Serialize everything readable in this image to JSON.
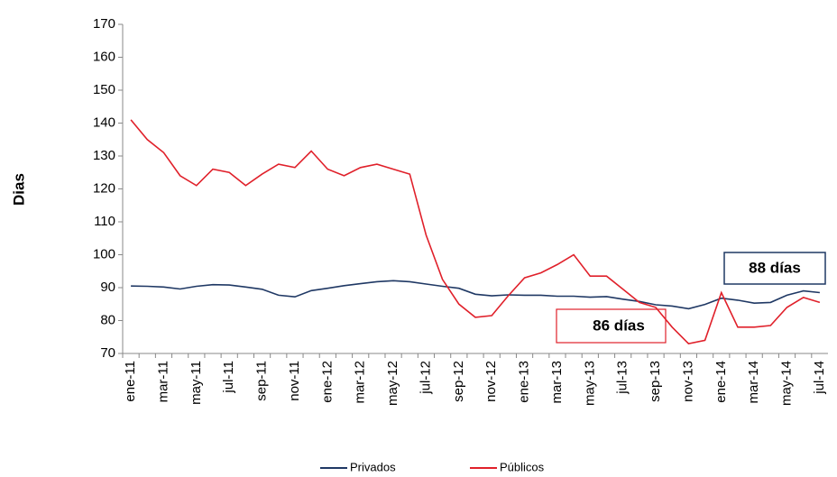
{
  "chart_data": {
    "type": "line",
    "y_label": "Dias",
    "categories": [
      "ene-11",
      null,
      "mar-11",
      null,
      "may-11",
      null,
      "jul-11",
      null,
      "sep-11",
      null,
      "nov-11",
      null,
      "ene-12",
      null,
      "mar-12",
      null,
      "may-12",
      null,
      "jul-12",
      null,
      "sep-12",
      null,
      "nov-12",
      null,
      "ene-13",
      null,
      "mar-13",
      null,
      "may-13",
      null,
      "jul-13",
      null,
      "sep-13",
      null,
      "nov-13",
      null,
      "ene-14",
      null,
      "mar-14",
      null,
      "may-14",
      null,
      "jul-14"
    ],
    "series": [
      {
        "name": "Privados",
        "color": "#1f3864",
        "values": [
          90.5,
          90.4,
          90.2,
          89.6,
          90.4,
          90.9,
          90.8,
          90.2,
          89.5,
          87.7,
          87.2,
          89.1,
          89.8,
          90.6,
          91.2,
          91.8,
          92.1,
          91.8,
          91.1,
          90.4,
          89.8,
          88,
          87.5,
          87.8,
          87.7,
          87.7,
          87.4,
          87.4,
          87.1,
          87.3,
          86.5,
          85.8,
          84.8,
          84.4,
          83.6,
          84.9,
          86.8,
          86.2,
          85.3,
          85.5,
          87.7,
          89,
          88.5
        ]
      },
      {
        "name": "Públicos",
        "color": "#e0202a",
        "values": [
          141,
          135,
          131,
          124,
          121,
          126,
          125,
          121,
          124.5,
          127.5,
          126.5,
          131.5,
          126,
          124,
          126.5,
          127.5,
          126,
          124.5,
          106,
          92.5,
          85,
          81,
          81.5,
          87.5,
          93,
          94.5,
          97,
          100,
          93.5,
          93.5,
          89.5,
          85.5,
          84,
          78,
          73,
          74,
          88.5,
          78,
          78,
          78.5,
          84,
          87,
          85.5
        ]
      }
    ],
    "annotations": [
      "88 días",
      "86 días"
    ],
    "ylim": [
      70,
      170
    ],
    "yticks": [
      70,
      80,
      90,
      100,
      110,
      120,
      130,
      140,
      150,
      160,
      170
    ]
  }
}
